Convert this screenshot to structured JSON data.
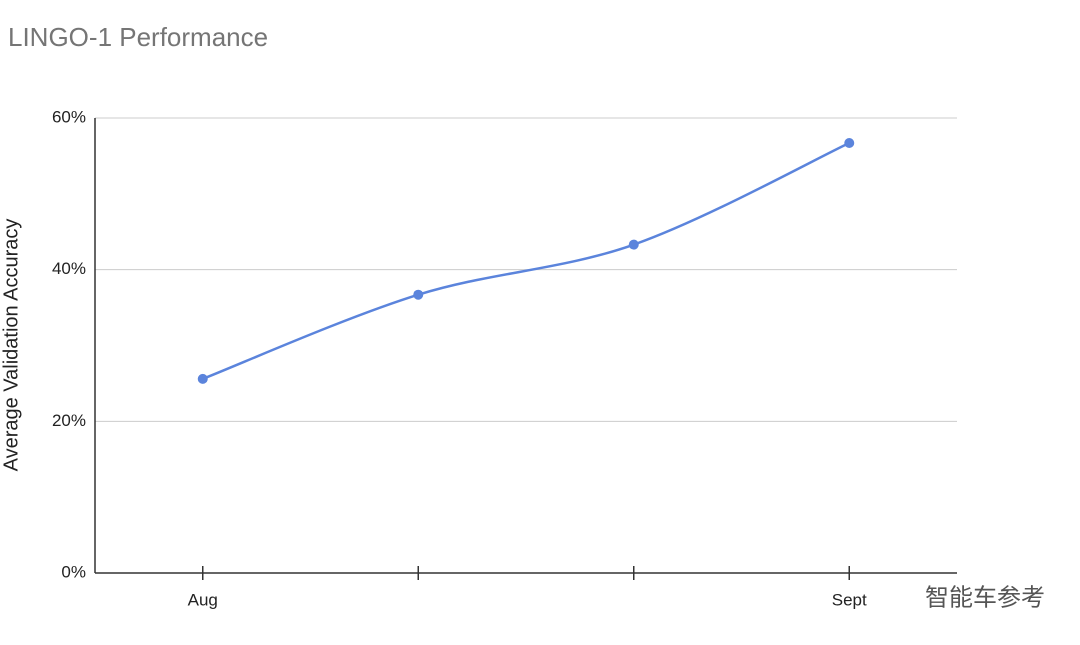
{
  "chart_data": {
    "type": "line",
    "title": "LINGO-1 Performance",
    "y_label": "Average Validation Accuracy",
    "categories": [
      "Aug",
      null,
      null,
      "Sept"
    ],
    "values": [
      25.6,
      36.7,
      43.3,
      56.7
    ],
    "color": "#5b84dc",
    "ylim": [
      0,
      60
    ],
    "yticks": [
      {
        "value": 0,
        "label": "0%"
      },
      {
        "value": 20,
        "label": "20%"
      },
      {
        "value": 40,
        "label": "40%"
      },
      {
        "value": 60,
        "label": "60%"
      }
    ],
    "grid": true,
    "smooth": true,
    "watermark": "智能车参考"
  }
}
